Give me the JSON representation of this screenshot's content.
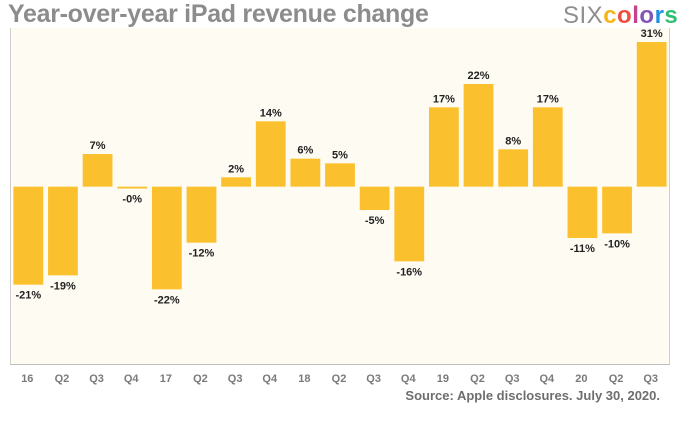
{
  "header": {
    "title": "Year-over-year iPad revenue change",
    "logo_part1": "SIX",
    "logo_part2": "colors",
    "logo_colors": [
      "#f6b619",
      "#ef4f3f",
      "#c63f90",
      "#8453b8",
      "#1f8fe0",
      "#2fbf71"
    ]
  },
  "footer": {
    "source": "Source: Apple disclosures. July 30, 2020."
  },
  "chart_data": {
    "type": "bar",
    "title": "Year-over-year iPad revenue change",
    "categories": [
      "16",
      "Q2",
      "Q3",
      "Q4",
      "17",
      "Q2",
      "Q3",
      "Q4",
      "18",
      "Q2",
      "Q3",
      "Q4",
      "19",
      "Q2",
      "Q3",
      "Q4",
      "20",
      "Q2",
      "Q3"
    ],
    "values": [
      -21,
      -19,
      7,
      -0.4,
      -22,
      -12,
      2,
      14,
      6,
      5,
      -5,
      -16,
      17,
      22,
      8,
      17,
      -11,
      -10,
      31
    ],
    "labels": [
      "-21%",
      "-19%",
      "7%",
      "-0%",
      "-22%",
      "-12%",
      "2%",
      "14%",
      "6%",
      "5%",
      "-5%",
      "-16%",
      "17%",
      "22%",
      "8%",
      "17%",
      "-11%",
      "-10%",
      "31%"
    ],
    "ylim": [
      -38,
      34
    ],
    "grid": false,
    "colors": {
      "bar": "#fbc02d",
      "plot_background": "#fefbf3"
    }
  }
}
